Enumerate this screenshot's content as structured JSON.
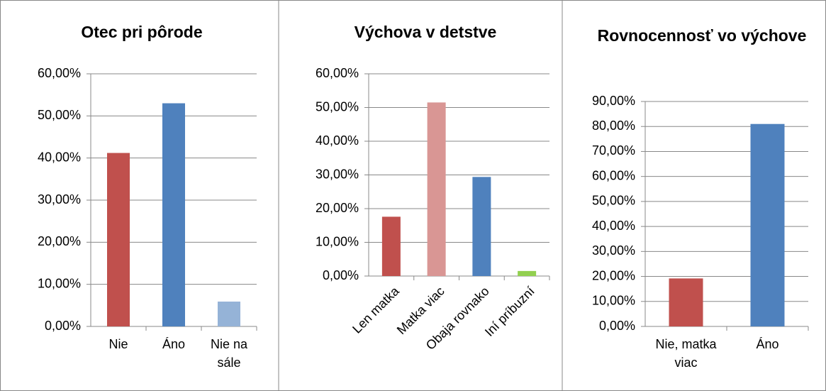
{
  "chart_data": [
    {
      "type": "bar",
      "title": "Otec pri pôrode",
      "categories": [
        "Nie",
        "Áno",
        "Nie na sále"
      ],
      "values": [
        41.2,
        53,
        5.9
      ],
      "colors": [
        "#c0504d",
        "#4f81bd",
        "#95b3d7"
      ],
      "ylim": [
        0,
        60
      ],
      "yticks": [
        {
          "value": 0,
          "label": "0,00%"
        },
        {
          "value": 10,
          "label": "10,00%"
        },
        {
          "value": 20,
          "label": "20,00%"
        },
        {
          "value": 30,
          "label": "30,00%"
        },
        {
          "value": 40,
          "label": "40,00%"
        },
        {
          "value": 50,
          "label": "50,00%"
        },
        {
          "value": 60,
          "label": "60,00%"
        }
      ]
    },
    {
      "type": "bar",
      "title": "Výchova v detstve",
      "categories": [
        "Len matka",
        "Matka viac",
        "Obaja rovnako",
        "Iní príbuzní"
      ],
      "values": [
        17.6,
        51.5,
        29.4,
        1.5
      ],
      "colors": [
        "#c0504d",
        "#d99694",
        "#4f81bd",
        "#92d050"
      ],
      "ylim": [
        0,
        60
      ],
      "yticks": [
        {
          "value": 0,
          "label": "0,00%"
        },
        {
          "value": 10,
          "label": "10,00%"
        },
        {
          "value": 20,
          "label": "20,00%"
        },
        {
          "value": 30,
          "label": "30,00%"
        },
        {
          "value": 40,
          "label": "40,00%"
        },
        {
          "value": 50,
          "label": "50,00%"
        },
        {
          "value": 60,
          "label": "60,00%"
        }
      ]
    },
    {
      "type": "bar",
      "title": "Rovnocennosť vo výchove",
      "categories": [
        "Nie, matka viac",
        "Áno"
      ],
      "values": [
        19.2,
        81
      ],
      "colors": [
        "#c0504d",
        "#4f81bd"
      ],
      "ylim": [
        0,
        90
      ],
      "yticks": [
        {
          "value": 0,
          "label": "0,00%"
        },
        {
          "value": 10,
          "label": "10,00%"
        },
        {
          "value": 20,
          "label": "20,00%"
        },
        {
          "value": 30,
          "label": "30,00%"
        },
        {
          "value": 40,
          "label": "40,00%"
        },
        {
          "value": 50,
          "label": "50,00%"
        },
        {
          "value": 60,
          "label": "60,00%"
        },
        {
          "value": 70,
          "label": "70,00%"
        },
        {
          "value": 80,
          "label": "80,00%"
        },
        {
          "value": 90,
          "label": "90,00%"
        }
      ]
    }
  ]
}
